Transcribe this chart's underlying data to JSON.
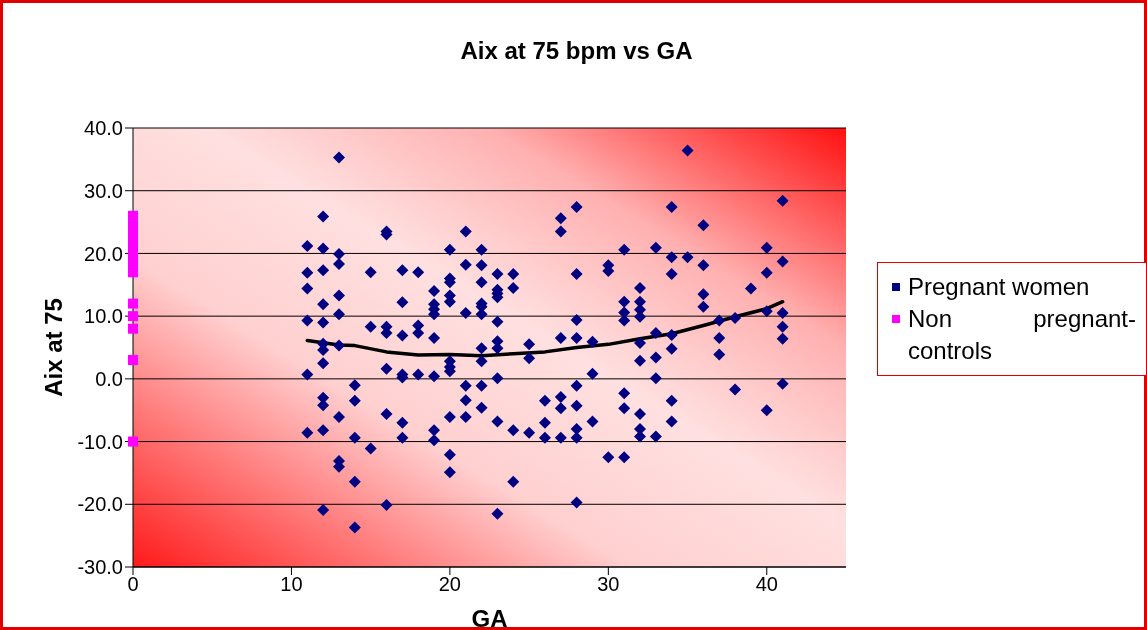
{
  "chart_data": {
    "type": "scatter",
    "title": "Aix at 75 bpm vs GA",
    "xlabel": "GA",
    "ylabel": "Aix at 75",
    "xlim": [
      0,
      45
    ],
    "xticks": [
      0,
      10,
      20,
      30,
      40
    ],
    "ylim": [
      -30,
      40
    ],
    "yticks": [
      {
        "value": -30,
        "label": "-30.0"
      },
      {
        "value": -20,
        "label": "-20.0"
      },
      {
        "value": -10,
        "label": "-10.0"
      },
      {
        "value": 0,
        "label": "0.0"
      },
      {
        "value": 10,
        "label": "10.0"
      },
      {
        "value": 20,
        "label": "20.0"
      },
      {
        "value": 30,
        "label": "30.0"
      },
      {
        "value": 40,
        "label": "40.0"
      }
    ],
    "grid": "y",
    "legend": "right",
    "series": [
      {
        "name": "Pregnant women",
        "marker": "diamond",
        "color": "#000080",
        "x": [
          11,
          11,
          11,
          11,
          11,
          11,
          12,
          12,
          12,
          12,
          12,
          12,
          12,
          12,
          12,
          12,
          12,
          12,
          13,
          13,
          13,
          13,
          13,
          13,
          13,
          13,
          13,
          14,
          14,
          14,
          14,
          14,
          15,
          15,
          15,
          16,
          16,
          16,
          16,
          16,
          16,
          16,
          17,
          17,
          17,
          17,
          17,
          17,
          17,
          18,
          18,
          18,
          18,
          19,
          19,
          19,
          19,
          19,
          19,
          19,
          19,
          20,
          20,
          20,
          20,
          20,
          20,
          20,
          20,
          20,
          20,
          20,
          21,
          21,
          21,
          21,
          21,
          21,
          22,
          22,
          22,
          22,
          22,
          22,
          22,
          22,
          22,
          22,
          23,
          23,
          23,
          23,
          23,
          23,
          23,
          23,
          23,
          23,
          24,
          24,
          24,
          24,
          25,
          25,
          25,
          26,
          26,
          26,
          27,
          27,
          27,
          27,
          27,
          27,
          28,
          28,
          28,
          28,
          28,
          28,
          28,
          28,
          28,
          29,
          29,
          29,
          30,
          30,
          30,
          31,
          31,
          31,
          31,
          31,
          31,
          31,
          32,
          32,
          32,
          32,
          32,
          32,
          32,
          32,
          32,
          33,
          33,
          33,
          33,
          33,
          34,
          34,
          34,
          34,
          34,
          34,
          34,
          35,
          35,
          36,
          36,
          36,
          36,
          37,
          37,
          37,
          38,
          38,
          39,
          40,
          40,
          40,
          40,
          41,
          41,
          41,
          41,
          41,
          41
        ],
        "values": [
          21.2,
          16.9,
          14.4,
          9.3,
          0.7,
          -8.6,
          25.9,
          20.8,
          17.3,
          11.9,
          9.0,
          5.6,
          4.6,
          2.5,
          -3.0,
          -4.2,
          -8.2,
          -20.9,
          35.3,
          19.9,
          18.3,
          13.3,
          10.3,
          5.3,
          -6.1,
          -13.1,
          -14.0,
          -1.0,
          -3.5,
          -9.4,
          -16.4,
          -23.7,
          17.0,
          8.3,
          -11.1,
          23.5,
          23.0,
          8.3,
          7.3,
          1.6,
          -5.6,
          -20.1,
          17.3,
          12.2,
          6.9,
          0.7,
          0.2,
          -7.0,
          -9.4,
          17.0,
          8.5,
          7.3,
          0.7,
          14.0,
          11.9,
          11.1,
          10.3,
          6.5,
          0.4,
          -8.2,
          -9.8,
          20.6,
          16.0,
          15.4,
          13.3,
          12.3,
          2.8,
          1.9,
          1.2,
          -6.1,
          -12.1,
          -14.9,
          23.5,
          18.2,
          10.5,
          -1.1,
          -3.4,
          -6.1,
          20.6,
          18.1,
          15.4,
          12.0,
          11.5,
          10.3,
          4.9,
          2.8,
          -1.1,
          -4.6,
          16.7,
          14.2,
          13.6,
          13.0,
          9.1,
          6.0,
          4.9,
          0.1,
          -6.8,
          -21.5,
          16.7,
          14.5,
          -8.2,
          -16.4,
          5.5,
          3.3,
          -8.6,
          -3.5,
          -7.0,
          -9.4,
          25.6,
          23.5,
          6.5,
          -2.9,
          -4.7,
          -9.4,
          27.4,
          16.7,
          9.4,
          6.5,
          -1.1,
          -4.3,
          -8.0,
          -9.4,
          -19.7,
          5.9,
          0.8,
          -6.8,
          18.1,
          17.2,
          -12.5,
          20.6,
          12.3,
          10.6,
          9.3,
          -2.3,
          -4.7,
          -12.5,
          14.5,
          12.3,
          11.0,
          9.9,
          5.7,
          2.9,
          -5.6,
          -8.0,
          -9.2,
          20.9,
          7.3,
          3.4,
          0.1,
          -9.2,
          27.4,
          19.4,
          16.7,
          7.0,
          4.8,
          -3.5,
          -6.8,
          36.4,
          19.4,
          24.5,
          18.1,
          13.5,
          11.5,
          9.3,
          6.5,
          3.9,
          9.7,
          -1.7,
          14.4,
          20.9,
          16.9,
          10.8,
          -5.0,
          28.4,
          18.7,
          10.5,
          8.3,
          6.4,
          -0.8
        ]
      },
      {
        "name": "Non pregnant-controls",
        "marker": "square",
        "color": "#ff00ff",
        "x": [
          0,
          0,
          0,
          0,
          0,
          0,
          0,
          0,
          0,
          0,
          0,
          0
        ],
        "values": [
          26,
          24.5,
          23,
          21.5,
          20,
          18.5,
          17,
          12,
          10,
          8,
          3,
          -10
        ]
      },
      {
        "type": "line",
        "marker": "none",
        "line_style": "solid",
        "color": "#000000",
        "x": [
          11,
          13,
          14,
          16,
          18,
          20,
          22,
          24,
          26,
          28,
          30,
          32,
          34,
          36,
          38,
          40,
          41
        ],
        "values": [
          6.1,
          5.4,
          5.3,
          4.3,
          3.8,
          3.9,
          3.7,
          4.0,
          4.3,
          5.0,
          5.5,
          6.4,
          7.2,
          8.5,
          9.9,
          11.2,
          12.3
        ]
      }
    ]
  }
}
